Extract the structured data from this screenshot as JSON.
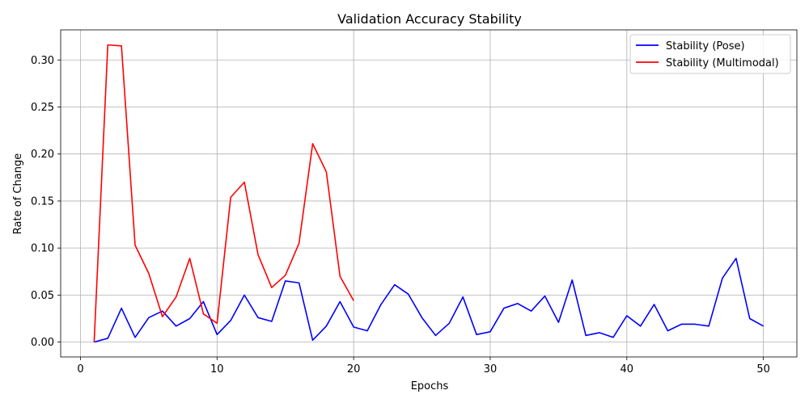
{
  "chart_data": {
    "type": "line",
    "title": "Validation Accuracy Stability",
    "xlabel": "Epochs",
    "ylabel": "Rate of Change",
    "xlim": [
      -1.45,
      52.45
    ],
    "ylim": [
      -0.0158,
      0.332
    ],
    "xticks": [
      0,
      10,
      20,
      30,
      40,
      50
    ],
    "yticks": [
      0.0,
      0.05,
      0.1,
      0.15,
      0.2,
      0.25,
      0.3
    ],
    "xtick_labels": [
      "0",
      "10",
      "20",
      "30",
      "40",
      "50"
    ],
    "ytick_labels": [
      "0.00",
      "0.05",
      "0.10",
      "0.15",
      "0.20",
      "0.25",
      "0.30"
    ],
    "grid": true,
    "legend_position": "top-right",
    "series": [
      {
        "name": "Stability (Pose)",
        "color": "#0000ff",
        "x": [
          1,
          2,
          3,
          4,
          5,
          6,
          7,
          8,
          9,
          10,
          11,
          12,
          13,
          14,
          15,
          16,
          17,
          18,
          19,
          20,
          21,
          22,
          23,
          24,
          25,
          26,
          27,
          28,
          29,
          30,
          31,
          32,
          33,
          34,
          35,
          36,
          37,
          38,
          39,
          40,
          41,
          42,
          43,
          44,
          45,
          46,
          47,
          48,
          49,
          50
        ],
        "values": [
          0.0,
          0.004,
          0.036,
          0.005,
          0.026,
          0.033,
          0.017,
          0.025,
          0.043,
          0.008,
          0.023,
          0.05,
          0.026,
          0.022,
          0.065,
          0.063,
          0.002,
          0.017,
          0.043,
          0.016,
          0.012,
          0.04,
          0.061,
          0.051,
          0.026,
          0.007,
          0.02,
          0.048,
          0.008,
          0.011,
          0.036,
          0.041,
          0.033,
          0.049,
          0.021,
          0.066,
          0.007,
          0.01,
          0.005,
          0.028,
          0.017,
          0.04,
          0.012,
          0.019,
          0.019,
          0.017,
          0.068,
          0.089,
          0.025,
          0.017
        ]
      },
      {
        "name": "Stability (Multimodal)",
        "color": "#ff0000",
        "x": [
          1,
          2,
          3,
          4,
          5,
          6,
          7,
          8,
          9,
          10,
          11,
          12,
          13,
          14,
          15,
          16,
          17,
          18,
          19,
          20
        ],
        "values": [
          0.0,
          0.316,
          0.315,
          0.103,
          0.073,
          0.027,
          0.048,
          0.089,
          0.03,
          0.02,
          0.154,
          0.17,
          0.093,
          0.058,
          0.071,
          0.105,
          0.211,
          0.181,
          0.07,
          0.044
        ]
      }
    ]
  }
}
